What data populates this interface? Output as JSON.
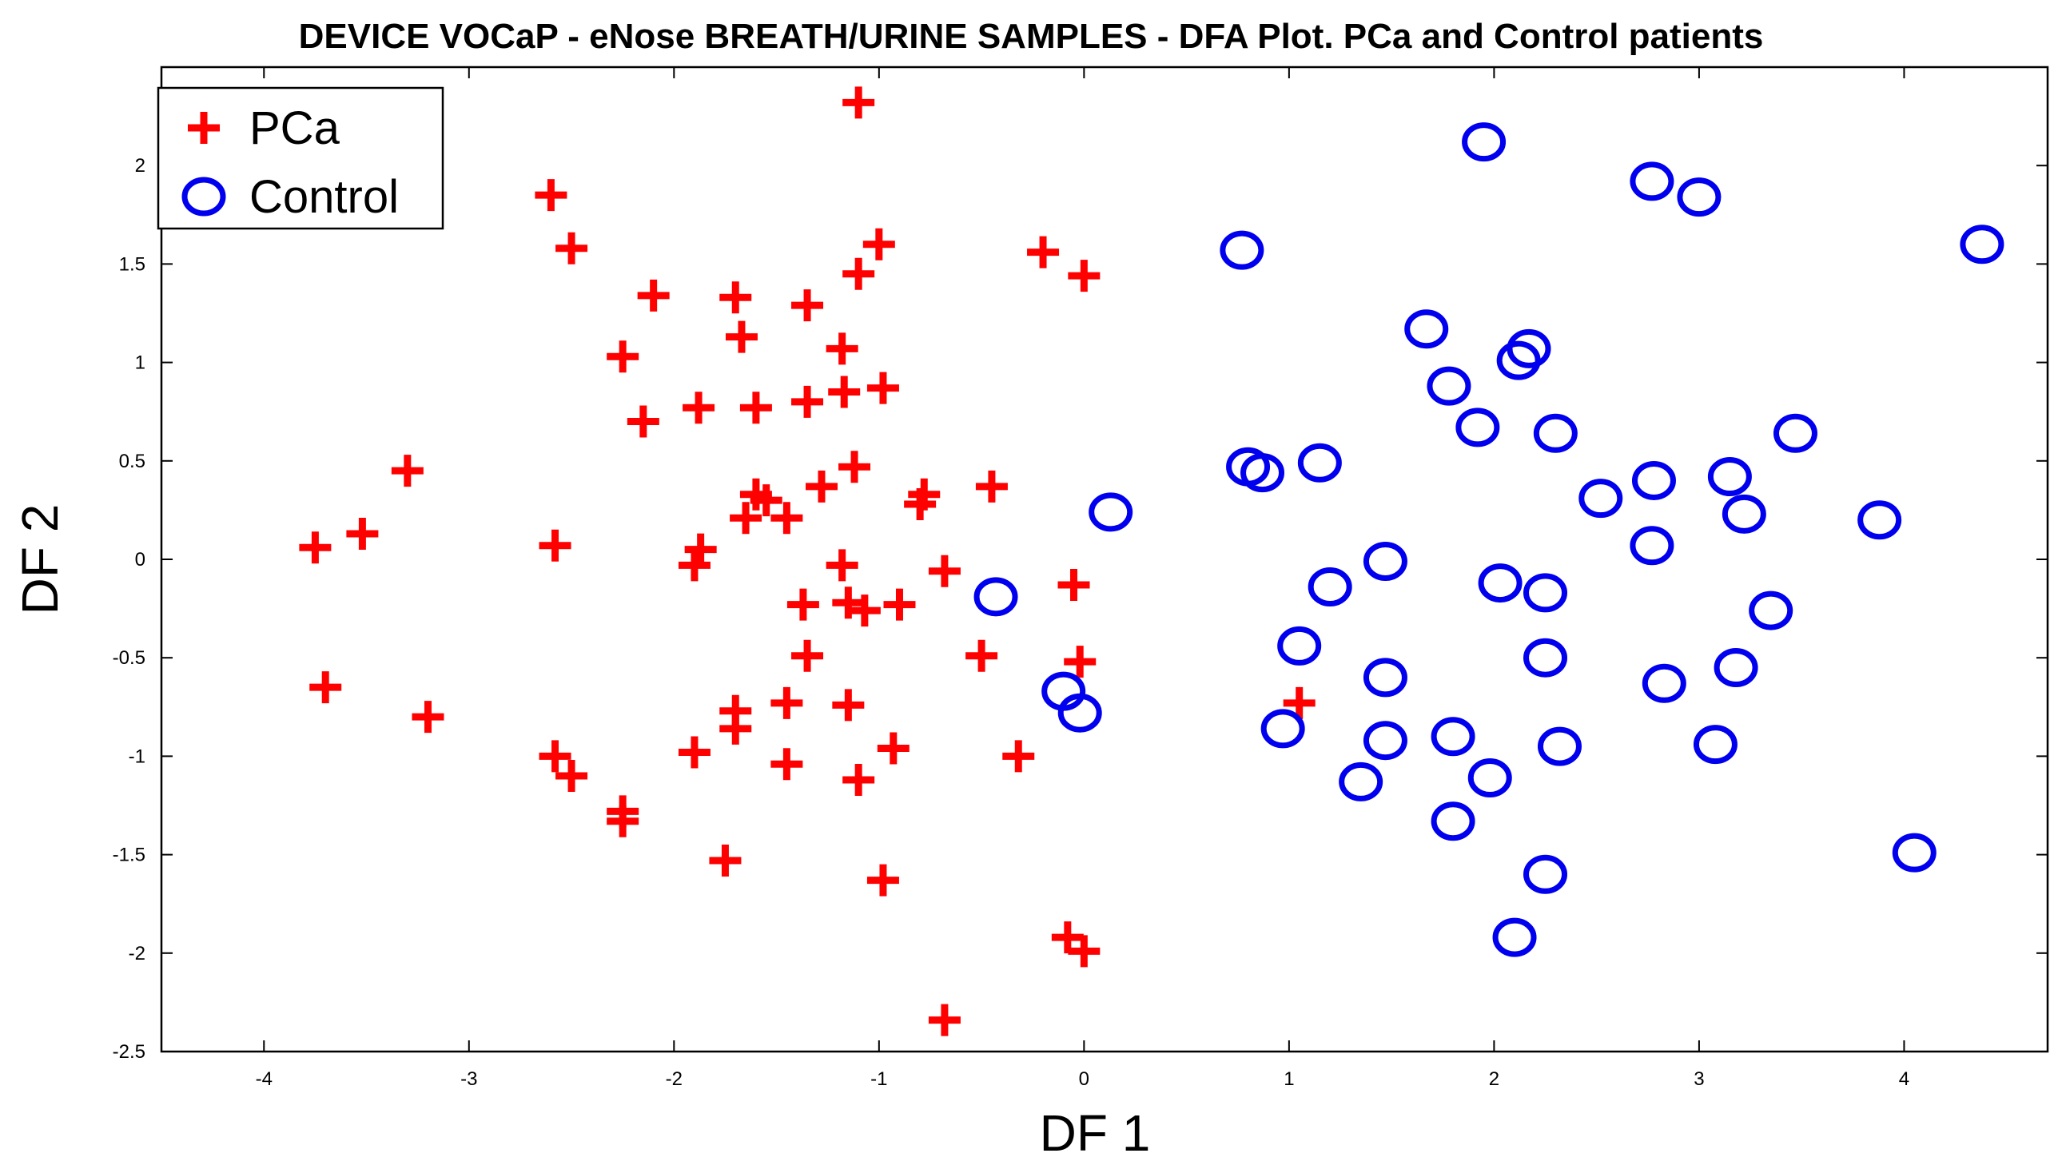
{
  "chart_data": {
    "type": "scatter",
    "title": "DEVICE VOCaP - eNose BREATH/URINE SAMPLES - DFA Plot. PCa and Control patients",
    "xlabel": "DF 1",
    "ylabel": "DF 2",
    "xlim": [
      -4.5,
      4.7
    ],
    "ylim": [
      -2.5,
      2.5
    ],
    "xticks": [
      -4,
      -3,
      -2,
      -1,
      0,
      1,
      2,
      3,
      4
    ],
    "xtick_labels": [
      "-4",
      "-3",
      "-2",
      "-1",
      "0",
      "1",
      "2",
      "3",
      "4"
    ],
    "yticks": [
      -2.5,
      -2,
      -1.5,
      -1,
      -0.5,
      0,
      0.5,
      1,
      1.5,
      2
    ],
    "ytick_labels": [
      "-2.5",
      "-2",
      "-1.5",
      "-1",
      "-0.5",
      "0",
      "0.5",
      "1",
      "1.5",
      "2"
    ],
    "grid": false,
    "legend_position": "top-left",
    "series": [
      {
        "name": "PCa",
        "marker": "plus",
        "color": "#ff0000",
        "points": [
          [
            -1.1,
            2.32
          ],
          [
            -2.6,
            1.85
          ],
          [
            -2.5,
            1.58
          ],
          [
            -1.0,
            1.6
          ],
          [
            -1.1,
            1.45
          ],
          [
            -0.2,
            1.56
          ],
          [
            0.0,
            1.44
          ],
          [
            -2.1,
            1.34
          ],
          [
            -1.7,
            1.33
          ],
          [
            -1.35,
            1.29
          ],
          [
            -1.67,
            1.13
          ],
          [
            -1.18,
            1.07
          ],
          [
            -2.25,
            1.03
          ],
          [
            -1.88,
            0.77
          ],
          [
            -1.6,
            0.77
          ],
          [
            -1.35,
            0.8
          ],
          [
            -1.17,
            0.85
          ],
          [
            -0.98,
            0.87
          ],
          [
            -2.15,
            0.7
          ],
          [
            -3.3,
            0.45
          ],
          [
            -1.12,
            0.47
          ],
          [
            -1.28,
            0.37
          ],
          [
            -0.45,
            0.37
          ],
          [
            -1.6,
            0.33
          ],
          [
            -1.55,
            0.3
          ],
          [
            -0.78,
            0.33
          ],
          [
            -0.8,
            0.28
          ],
          [
            -1.65,
            0.21
          ],
          [
            -1.45,
            0.21
          ],
          [
            -3.75,
            0.06
          ],
          [
            -3.52,
            0.13
          ],
          [
            -2.58,
            0.07
          ],
          [
            -1.87,
            0.05
          ],
          [
            -1.9,
            -0.03
          ],
          [
            -1.18,
            -0.03
          ],
          [
            -0.68,
            -0.06
          ],
          [
            -0.05,
            -0.13
          ],
          [
            -1.37,
            -0.23
          ],
          [
            -1.15,
            -0.22
          ],
          [
            -1.07,
            -0.26
          ],
          [
            -0.9,
            -0.23
          ],
          [
            -1.35,
            -0.49
          ],
          [
            -0.5,
            -0.49
          ],
          [
            -0.02,
            -0.52
          ],
          [
            -3.7,
            -0.65
          ],
          [
            -3.2,
            -0.8
          ],
          [
            -1.7,
            -0.77
          ],
          [
            -1.7,
            -0.86
          ],
          [
            -1.45,
            -0.73
          ],
          [
            -1.15,
            -0.74
          ],
          [
            -0.93,
            -0.96
          ],
          [
            -0.32,
            -1.0
          ],
          [
            -2.58,
            -1.0
          ],
          [
            -2.5,
            -1.1
          ],
          [
            -1.9,
            -0.98
          ],
          [
            -1.45,
            -1.04
          ],
          [
            -1.1,
            -1.12
          ],
          [
            -2.25,
            -1.28
          ],
          [
            -2.25,
            -1.33
          ],
          [
            -1.75,
            -1.53
          ],
          [
            -0.98,
            -1.63
          ],
          [
            -0.08,
            -1.92
          ],
          [
            0.0,
            -1.99
          ],
          [
            -0.68,
            -2.34
          ],
          [
            1.05,
            -0.73
          ]
        ]
      },
      {
        "name": "Control",
        "marker": "circle",
        "color": "#0000ee",
        "points": [
          [
            1.95,
            2.12
          ],
          [
            2.77,
            1.92
          ],
          [
            3.0,
            1.84
          ],
          [
            4.38,
            1.6
          ],
          [
            0.77,
            1.57
          ],
          [
            1.67,
            1.17
          ],
          [
            2.17,
            1.07
          ],
          [
            2.12,
            1.01
          ],
          [
            1.78,
            0.88
          ],
          [
            1.92,
            0.67
          ],
          [
            2.3,
            0.64
          ],
          [
            3.47,
            0.64
          ],
          [
            0.8,
            0.47
          ],
          [
            0.87,
            0.44
          ],
          [
            1.15,
            0.49
          ],
          [
            3.15,
            0.42
          ],
          [
            2.78,
            0.4
          ],
          [
            0.13,
            0.24
          ],
          [
            2.52,
            0.31
          ],
          [
            3.22,
            0.23
          ],
          [
            3.88,
            0.2
          ],
          [
            2.77,
            0.07
          ],
          [
            1.47,
            -0.01
          ],
          [
            -0.43,
            -0.19
          ],
          [
            1.2,
            -0.14
          ],
          [
            2.03,
            -0.12
          ],
          [
            2.25,
            -0.17
          ],
          [
            3.35,
            -0.26
          ],
          [
            1.05,
            -0.44
          ],
          [
            2.25,
            -0.5
          ],
          [
            3.18,
            -0.55
          ],
          [
            1.47,
            -0.6
          ],
          [
            2.83,
            -0.63
          ],
          [
            -0.1,
            -0.67
          ],
          [
            -0.02,
            -0.78
          ],
          [
            0.97,
            -0.86
          ],
          [
            1.47,
            -0.92
          ],
          [
            1.8,
            -0.9
          ],
          [
            2.32,
            -0.95
          ],
          [
            3.08,
            -0.94
          ],
          [
            1.35,
            -1.13
          ],
          [
            1.98,
            -1.11
          ],
          [
            1.8,
            -1.33
          ],
          [
            4.05,
            -1.49
          ],
          [
            2.25,
            -1.6
          ],
          [
            2.1,
            -1.92
          ]
        ]
      }
    ]
  }
}
